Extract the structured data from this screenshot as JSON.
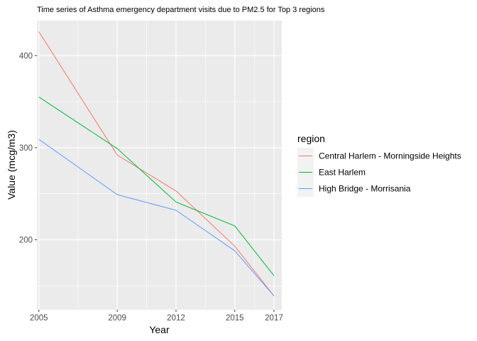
{
  "chart_data": {
    "type": "line",
    "title": "Time series of  Asthma emergency department visits due to PM2.5 for Top 3 regions",
    "xlabel": "Year",
    "ylabel": "Value (mcg/m3)",
    "x": [
      2005,
      2009,
      2012,
      2015,
      2017
    ],
    "x_ticks": [
      2005,
      2009,
      2012,
      2015,
      2017
    ],
    "y_ticks": [
      200,
      300,
      400
    ],
    "xlim": [
      2004.9,
      2017.4
    ],
    "ylim": [
      124,
      438
    ],
    "grid": true,
    "legend_title": "region",
    "legend_position": "right",
    "series": [
      {
        "name": "Central Harlem - Morningside Heights",
        "color": "#F8766D",
        "values": [
          426,
          292,
          253,
          193,
          139
        ]
      },
      {
        "name": "East Harlem",
        "color": "#00BA38",
        "values": [
          355,
          299,
          241,
          215,
          161
        ]
      },
      {
        "name": "High Bridge - Morrisania",
        "color": "#619CFF",
        "values": [
          309,
          249,
          232,
          188,
          139
        ]
      }
    ]
  }
}
